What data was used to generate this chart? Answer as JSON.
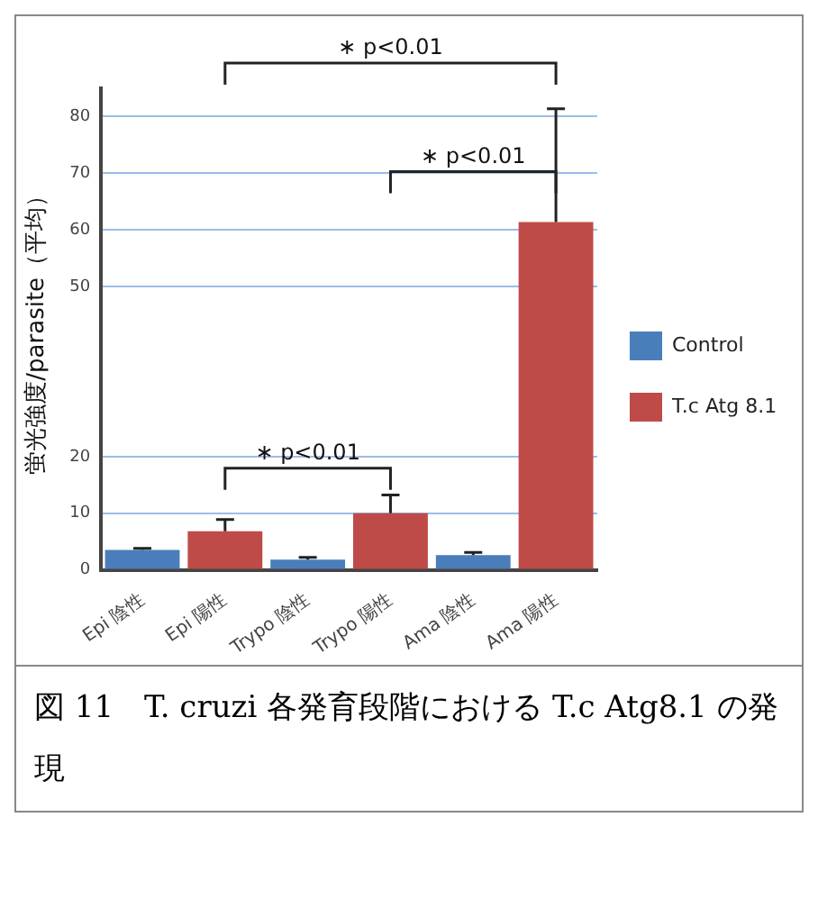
{
  "chart_data": {
    "type": "bar",
    "title": "図 11　T. cruzi 各発育段階における T.c Atg8.1 の発現",
    "ylabel": "蛍光強度/parasite（平均）",
    "categories": [
      "Epi 陰性",
      "Epi 陽性",
      "Trypo 陰性",
      "Trypo 陽性",
      "Ama 陰性",
      "Ama 陽性"
    ],
    "series": [
      {
        "name": "Control",
        "color": "#4a7ebb",
        "values": [
          3.5,
          null,
          1.8,
          null,
          2.6,
          null
        ],
        "errors": [
          [
            3.5,
            3.8
          ],
          null,
          [
            1.8,
            2.2
          ],
          null,
          [
            2.6,
            3.1
          ],
          null
        ]
      },
      {
        "name": "T.c Atg 8.1",
        "color": "#be4b48",
        "values": [
          null,
          6.8,
          null,
          10,
          null,
          61.4
        ],
        "errors": [
          null,
          [
            6.8,
            8.9
          ],
          null,
          [
            10,
            13.2
          ],
          null,
          [
            61.4,
            81.4
          ]
        ]
      }
    ],
    "ylim": [
      0,
      85
    ],
    "yticks": [
      0,
      10,
      20,
      50,
      60,
      70,
      80
    ],
    "grid": "y",
    "legend": "right",
    "annotations": [
      "∗ p<0.01",
      "∗ p<0.01",
      "∗ p<0.01"
    ]
  }
}
